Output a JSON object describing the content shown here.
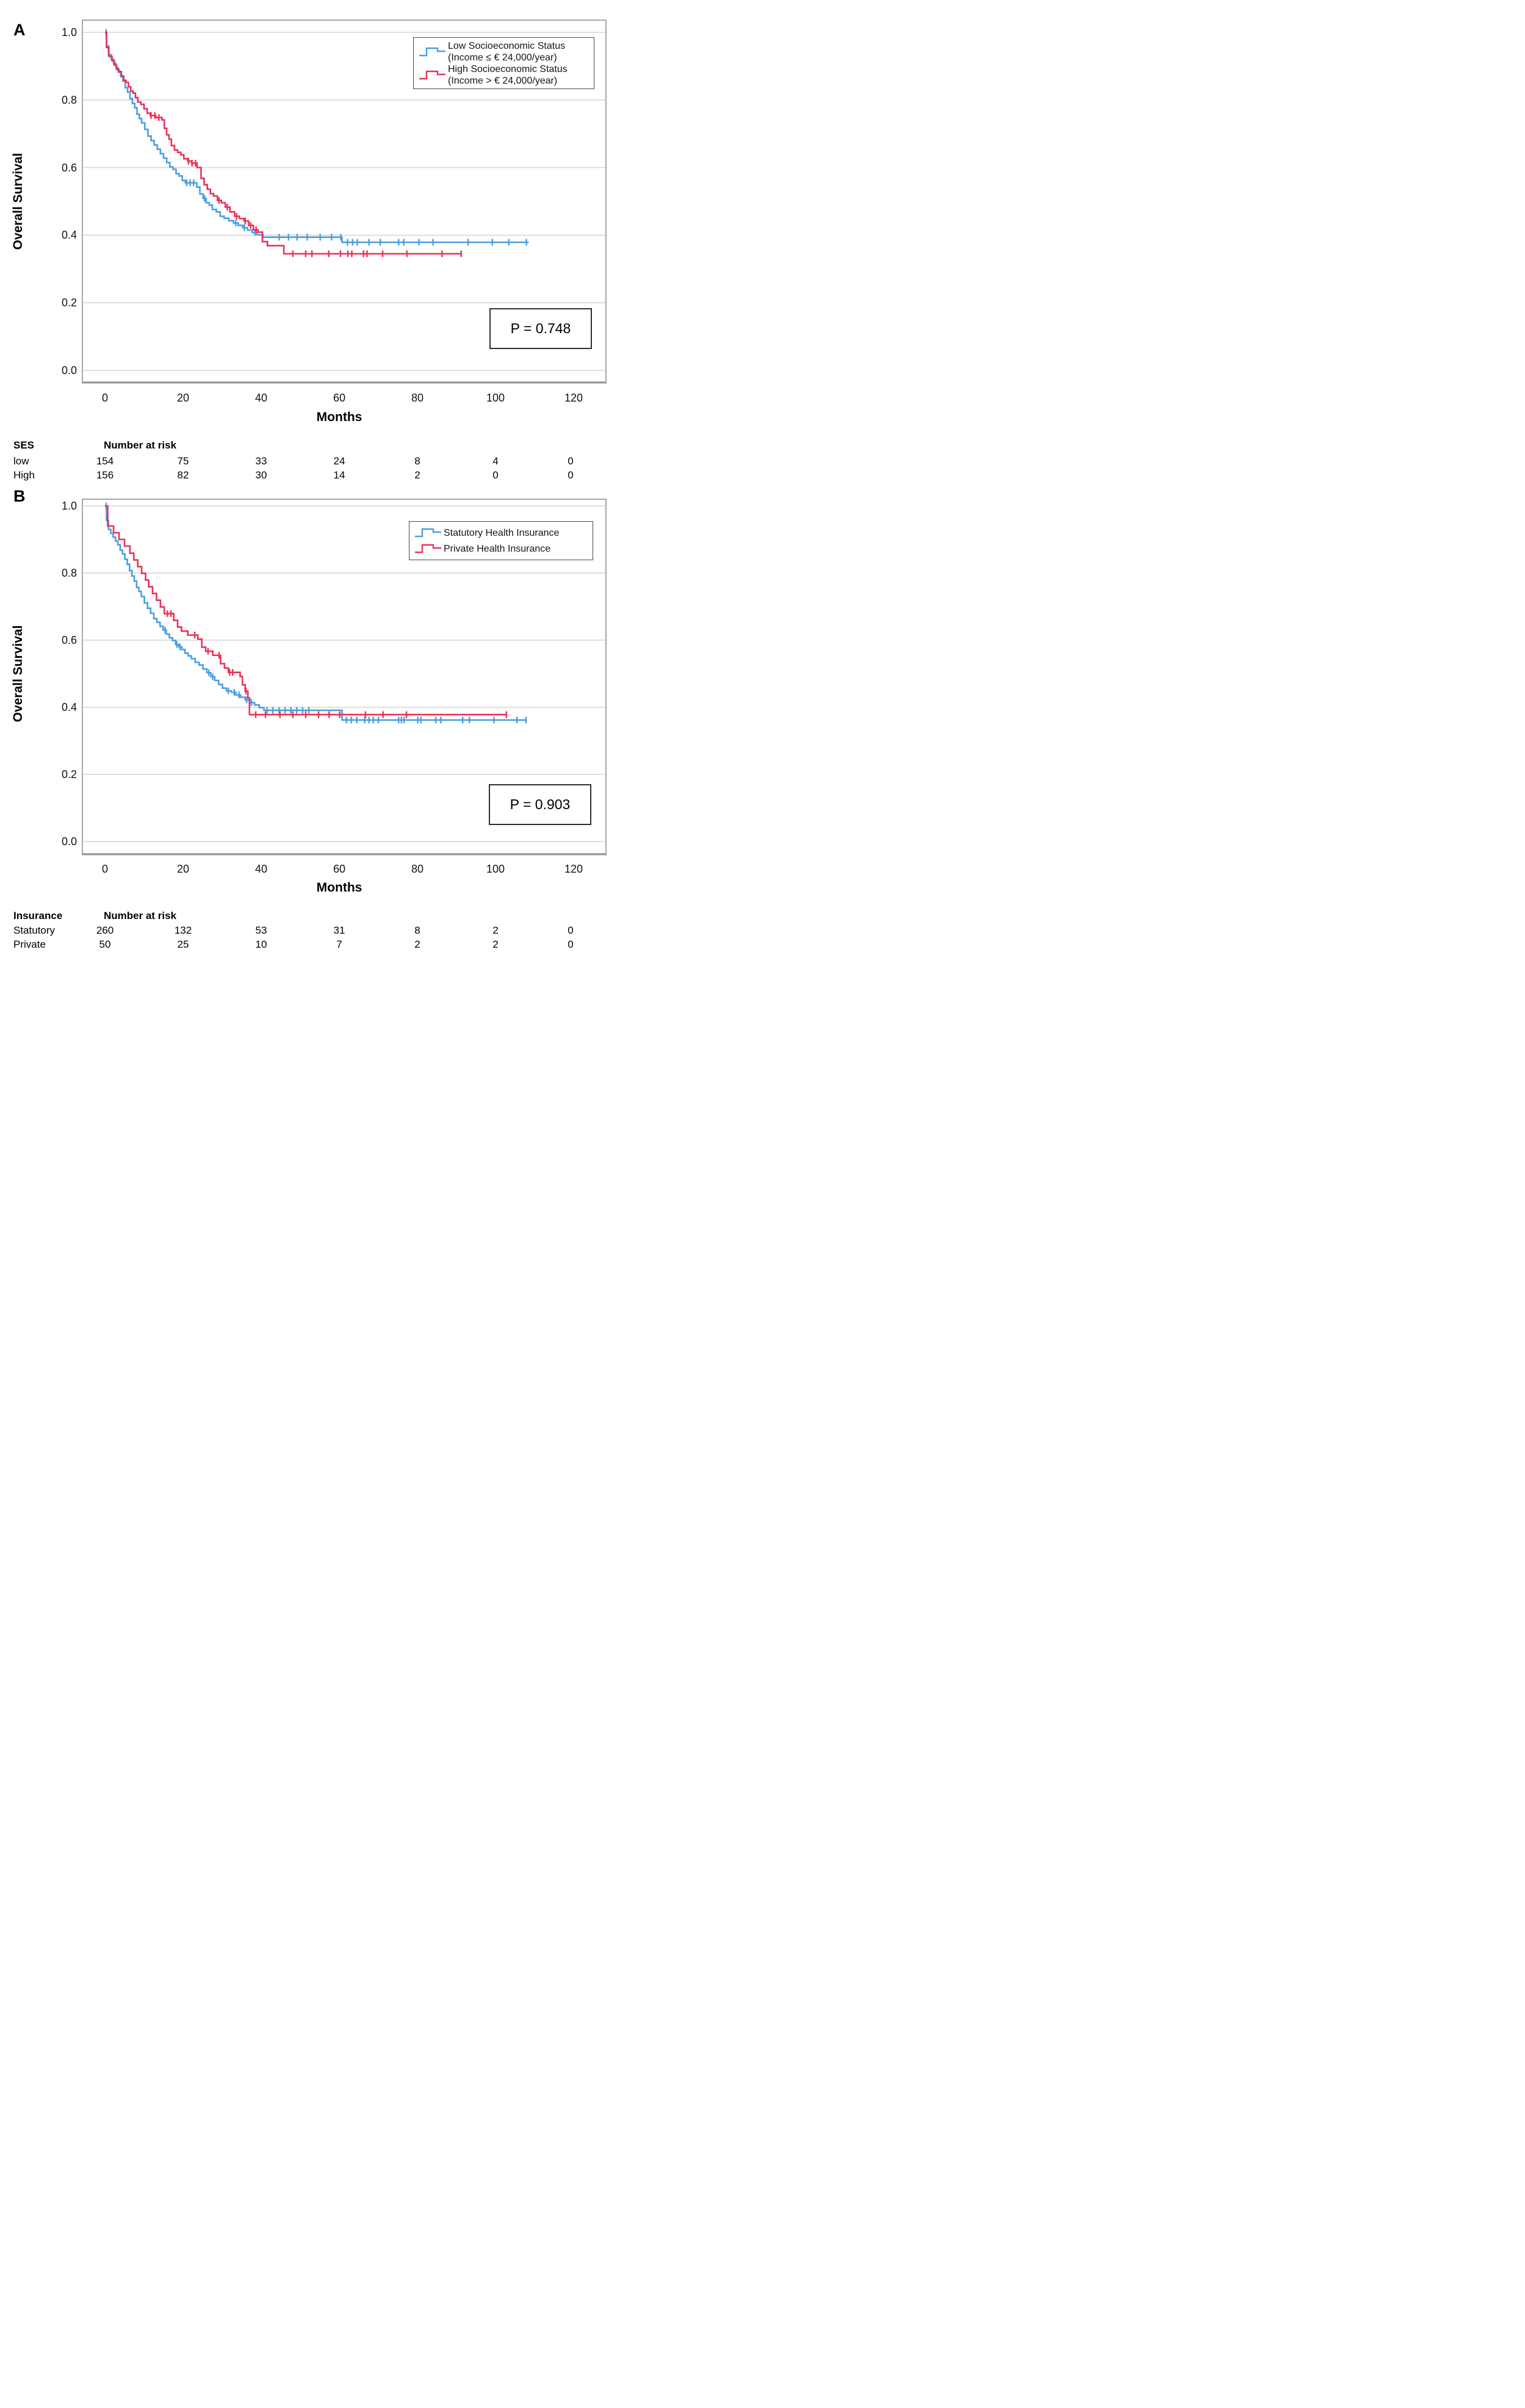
{
  "colors": {
    "blue": "#4B9FE0",
    "red": "#E8325A",
    "grid": "#D6D6D6",
    "frame": "#A8A8A8",
    "frame_bottom": "#9C9C9C"
  },
  "chart_data": [
    {
      "panel_letter": "A",
      "type": "line",
      "subtype": "kaplan-meier-step",
      "xlabel": "Months",
      "ylabel": "Overall Survival",
      "xlim": [
        0,
        120
      ],
      "ylim": [
        0.0,
        1.0
      ],
      "x_tick_labels": [
        "0",
        "20",
        "40",
        "60",
        "80",
        "100",
        "120"
      ],
      "y_tick_labels": [
        "1.0",
        "0.8",
        "0.6",
        "0.4",
        "0.2",
        "0.0"
      ],
      "grid": "horizontal",
      "legend_position": "top-right",
      "p_value_label": "P = 0.748",
      "series": [
        {
          "name": "Low Socioeconomic Status",
          "name_line2": "(Income ≤ € 24,000/year)",
          "color_key": "blue",
          "steps": [
            [
              0,
              1
            ],
            [
              0.4,
              0.96
            ],
            [
              0.9,
              0.934
            ],
            [
              1.6,
              0.921
            ],
            [
              2.2,
              0.908
            ],
            [
              2.8,
              0.895
            ],
            [
              3.4,
              0.882
            ],
            [
              4,
              0.869
            ],
            [
              4.6,
              0.856
            ],
            [
              5.2,
              0.836
            ],
            [
              5.8,
              0.823
            ],
            [
              6.4,
              0.804
            ],
            [
              7,
              0.79
            ],
            [
              7.6,
              0.777
            ],
            [
              8.2,
              0.758
            ],
            [
              8.8,
              0.745
            ],
            [
              9.4,
              0.732
            ],
            [
              10.2,
              0.713
            ],
            [
              11,
              0.693
            ],
            [
              11.8,
              0.68
            ],
            [
              12.6,
              0.667
            ],
            [
              13.4,
              0.654
            ],
            [
              14.2,
              0.641
            ],
            [
              15,
              0.628
            ],
            [
              15.8,
              0.615
            ],
            [
              16.6,
              0.602
            ],
            [
              17.4,
              0.595
            ],
            [
              18.2,
              0.582
            ],
            [
              19,
              0.575
            ],
            [
              19.8,
              0.562
            ],
            [
              20.6,
              0.555
            ],
            [
              23.5,
              0.542
            ],
            [
              24.3,
              0.522
            ],
            [
              25.1,
              0.509
            ],
            [
              25.9,
              0.496
            ],
            [
              26.7,
              0.489
            ],
            [
              27.5,
              0.476
            ],
            [
              28.5,
              0.469
            ],
            [
              29.5,
              0.456
            ],
            [
              30.5,
              0.45
            ],
            [
              31.7,
              0.443
            ],
            [
              32.9,
              0.436
            ],
            [
              34.1,
              0.429
            ],
            [
              35.3,
              0.422
            ],
            [
              36.5,
              0.415
            ],
            [
              37.7,
              0.408
            ],
            [
              38.9,
              0.401
            ],
            [
              40.5,
              0.394
            ],
            [
              60.7,
              0.379
            ],
            [
              108.5,
              0.379
            ]
          ],
          "censor_times": [
            0.3,
            20.9,
            21.8,
            22.7,
            25.5,
            33.5,
            35.7,
            38.4,
            44.6,
            47,
            49.2,
            51.8,
            55.1,
            58,
            60.4,
            62.1,
            63.4,
            64.6,
            67.6,
            70.5,
            75.2,
            76.5,
            80.4,
            84,
            93,
            99.2,
            103.4,
            107.9
          ]
        },
        {
          "name": "High Socioeconomic Status",
          "name_line2": "(Income > € 24,000/year)",
          "color_key": "red",
          "steps": [
            [
              0,
              1
            ],
            [
              0.4,
              0.955
            ],
            [
              1,
              0.929
            ],
            [
              1.8,
              0.916
            ],
            [
              2.4,
              0.903
            ],
            [
              3,
              0.89
            ],
            [
              3.6,
              0.884
            ],
            [
              4.2,
              0.871
            ],
            [
              4.8,
              0.858
            ],
            [
              5.4,
              0.852
            ],
            [
              6,
              0.839
            ],
            [
              6.6,
              0.826
            ],
            [
              7.2,
              0.82
            ],
            [
              7.8,
              0.807
            ],
            [
              8.4,
              0.794
            ],
            [
              9.2,
              0.787
            ],
            [
              10,
              0.774
            ],
            [
              10.8,
              0.761
            ],
            [
              11.6,
              0.754
            ],
            [
              13,
              0.748
            ],
            [
              14.6,
              0.741
            ],
            [
              15.2,
              0.716
            ],
            [
              15.8,
              0.697
            ],
            [
              16.4,
              0.684
            ],
            [
              17,
              0.665
            ],
            [
              17.8,
              0.652
            ],
            [
              18.6,
              0.645
            ],
            [
              19.4,
              0.638
            ],
            [
              20.2,
              0.626
            ],
            [
              21.2,
              0.619
            ],
            [
              22.2,
              0.613
            ],
            [
              23.6,
              0.6
            ],
            [
              24.6,
              0.568
            ],
            [
              25.4,
              0.549
            ],
            [
              26.2,
              0.536
            ],
            [
              27,
              0.523
            ],
            [
              27.8,
              0.516
            ],
            [
              28.8,
              0.503
            ],
            [
              29.8,
              0.496
            ],
            [
              30.8,
              0.483
            ],
            [
              32,
              0.469
            ],
            [
              33.2,
              0.456
            ],
            [
              34.4,
              0.449
            ],
            [
              35.6,
              0.442
            ],
            [
              36.8,
              0.429
            ],
            [
              38,
              0.416
            ],
            [
              39.2,
              0.409
            ],
            [
              40.3,
              0.381
            ],
            [
              41.6,
              0.369
            ],
            [
              45.8,
              0.345
            ],
            [
              91.4,
              0.345
            ]
          ],
          "censor_times": [
            11.8,
            12.8,
            13.8,
            21.4,
            22.3,
            23.2,
            29.2,
            31.3,
            33.7,
            35.9,
            37.3,
            38.7,
            48.1,
            51.4,
            53,
            57.3,
            60.3,
            62.2,
            63.2,
            66.2,
            67.1,
            71.1,
            77.3,
            86.3,
            91.2
          ]
        }
      ],
      "risk_table": {
        "group_header": "SES",
        "title": "Number at risk",
        "rows": [
          {
            "label": "low",
            "counts": [
              "154",
              "75",
              "33",
              "24",
              "8",
              "4",
              "0"
            ]
          },
          {
            "label": "High",
            "counts": [
              "156",
              "82",
              "30",
              "14",
              "2",
              "0",
              "0"
            ]
          }
        ]
      }
    },
    {
      "panel_letter": "B",
      "type": "line",
      "subtype": "kaplan-meier-step",
      "xlabel": "Months",
      "ylabel": "Overall Survival",
      "xlim": [
        0,
        120
      ],
      "ylim": [
        0.0,
        1.0
      ],
      "x_tick_labels": [
        "0",
        "20",
        "40",
        "60",
        "80",
        "100",
        "120"
      ],
      "y_tick_labels": [
        "1.0",
        "0.8",
        "0.6",
        "0.4",
        "0.2",
        "0.0"
      ],
      "grid": "horizontal",
      "legend_position": "top-right",
      "p_value_label": "P = 0.903",
      "series": [
        {
          "name": "Statutory Health Insurance",
          "color_key": "blue",
          "steps": [
            [
              0,
              1
            ],
            [
              0.4,
              0.957
            ],
            [
              0.9,
              0.93
            ],
            [
              1.5,
              0.918
            ],
            [
              2.1,
              0.907
            ],
            [
              2.7,
              0.895
            ],
            [
              3.3,
              0.884
            ],
            [
              3.9,
              0.868
            ],
            [
              4.5,
              0.857
            ],
            [
              5.1,
              0.841
            ],
            [
              5.7,
              0.826
            ],
            [
              6.3,
              0.807
            ],
            [
              6.9,
              0.791
            ],
            [
              7.5,
              0.776
            ],
            [
              8.1,
              0.757
            ],
            [
              8.7,
              0.745
            ],
            [
              9.3,
              0.73
            ],
            [
              10.1,
              0.711
            ],
            [
              10.9,
              0.695
            ],
            [
              11.7,
              0.68
            ],
            [
              12.5,
              0.664
            ],
            [
              13.3,
              0.653
            ],
            [
              14.1,
              0.641
            ],
            [
              14.9,
              0.63
            ],
            [
              15.7,
              0.618
            ],
            [
              16.5,
              0.607
            ],
            [
              17.3,
              0.599
            ],
            [
              18.1,
              0.587
            ],
            [
              18.9,
              0.58
            ],
            [
              19.7,
              0.572
            ],
            [
              20.5,
              0.561
            ],
            [
              21.3,
              0.553
            ],
            [
              22.1,
              0.545
            ],
            [
              23.1,
              0.534
            ],
            [
              24.1,
              0.526
            ],
            [
              25.1,
              0.514
            ],
            [
              26.1,
              0.503
            ],
            [
              27.1,
              0.491
            ],
            [
              28.1,
              0.48
            ],
            [
              29.1,
              0.468
            ],
            [
              30.1,
              0.457
            ],
            [
              31.1,
              0.449
            ],
            [
              32.3,
              0.445
            ],
            [
              33.5,
              0.437
            ],
            [
              34.7,
              0.43
            ],
            [
              35.9,
              0.422
            ],
            [
              37.1,
              0.414
            ],
            [
              38.3,
              0.407
            ],
            [
              39.5,
              0.399
            ],
            [
              40.7,
              0.391
            ],
            [
              60.7,
              0.362
            ],
            [
              108,
              0.362
            ]
          ],
          "censor_times": [
            0.3,
            15.4,
            18.4,
            19.2,
            26.6,
            27.6,
            31.6,
            33.1,
            34.3,
            36.3,
            37.5,
            41.5,
            43,
            44.6,
            46.1,
            47.6,
            49.1,
            50.6,
            52.2,
            61.8,
            63.1,
            64.5,
            66.5,
            67.6,
            68.7,
            70,
            75.2,
            75.9,
            76.6,
            80.1,
            80.9,
            84.7,
            86,
            91.6,
            93.3,
            99.6,
            105.5,
            107.8
          ]
        },
        {
          "name": "Private Health Insurance",
          "color_key": "red",
          "steps": [
            [
              0,
              1
            ],
            [
              0.7,
              0.94
            ],
            [
              2.2,
              0.92
            ],
            [
              3.6,
              0.9
            ],
            [
              5,
              0.88
            ],
            [
              6.4,
              0.859
            ],
            [
              7.4,
              0.839
            ],
            [
              8.4,
              0.819
            ],
            [
              9.4,
              0.799
            ],
            [
              10.4,
              0.779
            ],
            [
              11.2,
              0.759
            ],
            [
              12.2,
              0.739
            ],
            [
              13.2,
              0.719
            ],
            [
              14.2,
              0.699
            ],
            [
              15.2,
              0.679
            ],
            [
              17.6,
              0.659
            ],
            [
              18.6,
              0.639
            ],
            [
              19.6,
              0.627
            ],
            [
              21.2,
              0.615
            ],
            [
              23.8,
              0.603
            ],
            [
              24.8,
              0.579
            ],
            [
              25.8,
              0.567
            ],
            [
              27.6,
              0.555
            ],
            [
              29.6,
              0.53
            ],
            [
              30.6,
              0.517
            ],
            [
              31.6,
              0.504
            ],
            [
              34.6,
              0.492
            ],
            [
              35.2,
              0.467
            ],
            [
              35.9,
              0.448
            ],
            [
              36.6,
              0.428
            ],
            [
              37,
              0.378
            ],
            [
              103,
              0.378
            ]
          ],
          "censor_times": [
            16,
            16.9,
            23,
            26.4,
            29.2,
            31.9,
            32.7,
            36.1,
            38.6,
            41.1,
            44.8,
            48.1,
            51.4,
            54.7,
            57.4,
            60.1,
            66.7,
            71.2,
            77.2,
            102.8
          ]
        }
      ],
      "risk_table": {
        "group_header": "Insurance",
        "title": "Number at risk",
        "rows": [
          {
            "label": "Statutory",
            "counts": [
              "260",
              "132",
              "53",
              "31",
              "8",
              "2",
              "0"
            ]
          },
          {
            "label": "Private",
            "counts": [
              "50",
              "25",
              "10",
              "7",
              "2",
              "2",
              "0"
            ]
          }
        ]
      }
    }
  ]
}
